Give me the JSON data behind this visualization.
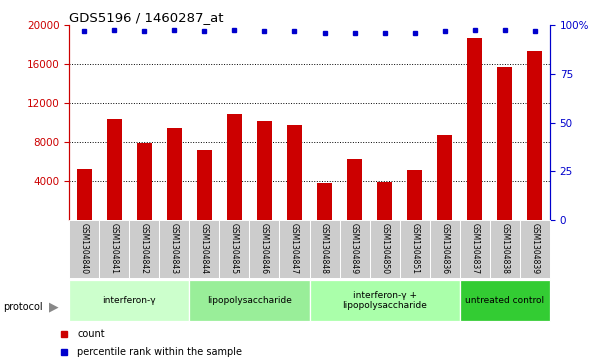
{
  "title": "GDS5196 / 1460287_at",
  "samples": [
    "GSM1304840",
    "GSM1304841",
    "GSM1304842",
    "GSM1304843",
    "GSM1304844",
    "GSM1304845",
    "GSM1304846",
    "GSM1304847",
    "GSM1304848",
    "GSM1304849",
    "GSM1304850",
    "GSM1304851",
    "GSM1304836",
    "GSM1304837",
    "GSM1304838",
    "GSM1304839"
  ],
  "counts": [
    5200,
    10400,
    7900,
    9400,
    7200,
    10900,
    10200,
    9700,
    3800,
    6200,
    3900,
    5100,
    8700,
    18700,
    15700,
    17400
  ],
  "percentile_y_values": [
    19400,
    19500,
    19400,
    19500,
    19400,
    19500,
    19400,
    19400,
    19200,
    19200,
    19200,
    19200,
    19400,
    19500,
    19500,
    19400
  ],
  "groups": [
    {
      "label": "interferon-γ",
      "start": 0,
      "end": 4,
      "color": "#ccffcc"
    },
    {
      "label": "lipopolysaccharide",
      "start": 4,
      "end": 8,
      "color": "#99ee99"
    },
    {
      "label": "interferon-γ +\nlipopolysaccharide",
      "start": 8,
      "end": 13,
      "color": "#aaffaa"
    },
    {
      "label": "untreated control",
      "start": 13,
      "end": 16,
      "color": "#33cc33"
    }
  ],
  "ylim_left": [
    0,
    20000
  ],
  "ylim_right": [
    0,
    100
  ],
  "yticks_left": [
    4000,
    8000,
    12000,
    16000,
    20000
  ],
  "yticks_right": [
    0,
    25,
    50,
    75,
    100
  ],
  "bar_color": "#cc0000",
  "dot_color": "#0000cc",
  "bg_color": "#ffffff",
  "xticklabel_bg": "#cccccc",
  "left_axis_color": "#cc0000",
  "right_axis_color": "#0000cc",
  "grid_yticks": [
    4000,
    8000,
    12000,
    16000
  ]
}
